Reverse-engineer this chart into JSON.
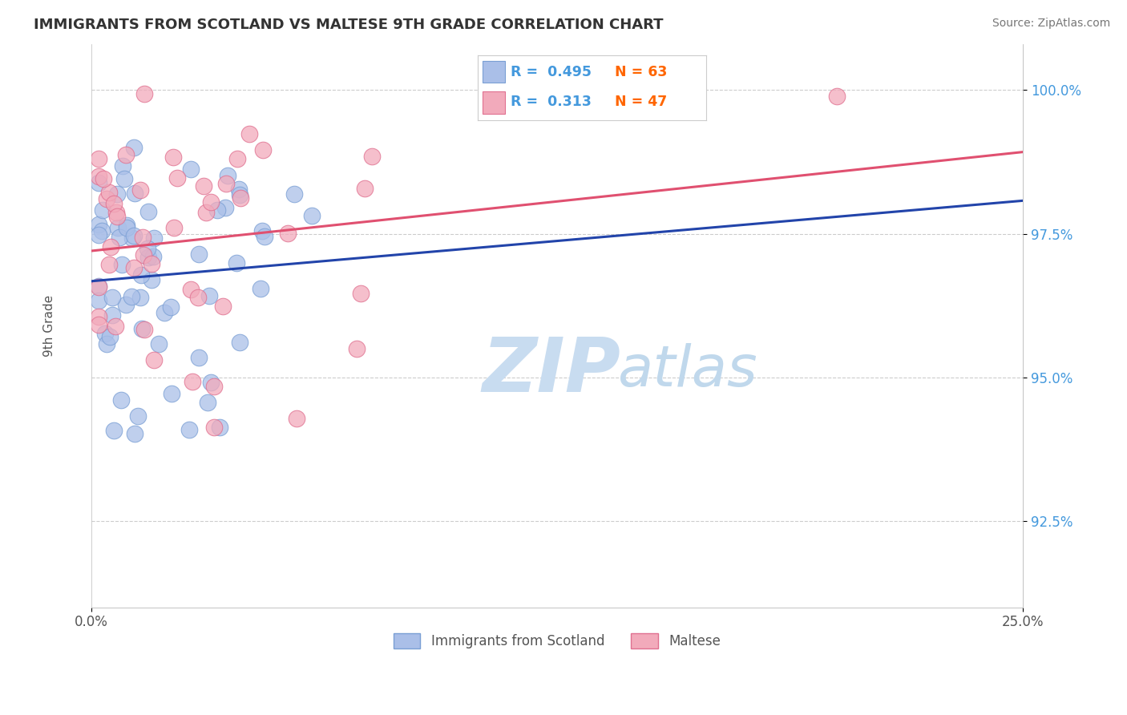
{
  "title": "IMMIGRANTS FROM SCOTLAND VS MALTESE 9TH GRADE CORRELATION CHART",
  "source": "Source: ZipAtlas.com",
  "ylabel": "9th Grade",
  "ytick_labels": [
    "92.5%",
    "95.0%",
    "97.5%",
    "100.0%"
  ],
  "ytick_values": [
    0.925,
    0.95,
    0.975,
    1.0
  ],
  "xmin": 0.0,
  "xmax": 0.25,
  "ymin": 0.91,
  "ymax": 1.008,
  "legend_r1_val": "0.495",
  "legend_n1_val": "63",
  "legend_r2_val": "0.313",
  "legend_n2_val": "47",
  "color_blue_fill": "#AABFE8",
  "color_blue_edge": "#7A9FD4",
  "color_pink_fill": "#F2AABB",
  "color_pink_edge": "#E07090",
  "color_blue_line": "#2244AA",
  "color_pink_line": "#E05070",
  "ytick_color": "#4499DD",
  "xtick_color": "#555555",
  "watermark_zip": "ZIP",
  "watermark_atlas": "atlas",
  "watermark_color_zip": "#C8DCF0",
  "watermark_color_atlas": "#C0D8EC",
  "legend_label1": "Immigrants from Scotland",
  "legend_label2": "Maltese",
  "title_color": "#333333",
  "source_color": "#777777",
  "ylabel_color": "#555555",
  "grid_color": "#CCCCCC"
}
